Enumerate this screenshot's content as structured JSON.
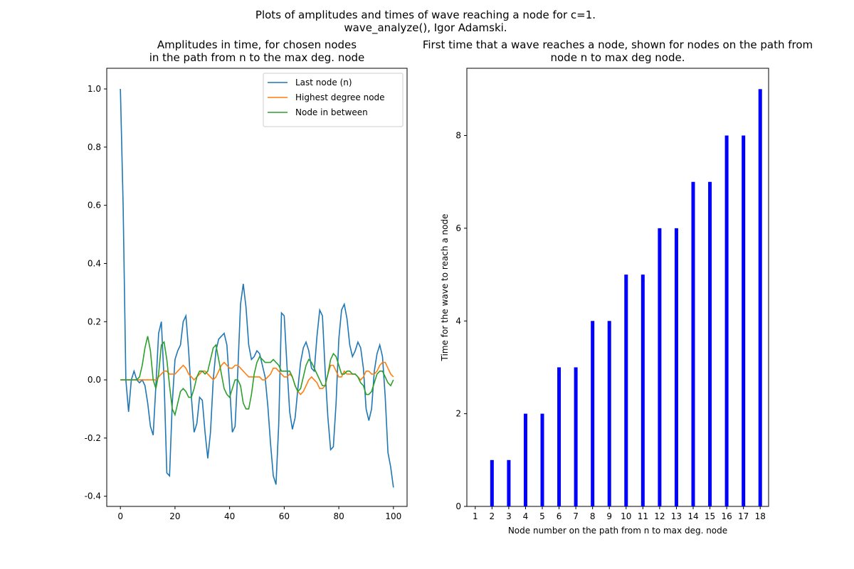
{
  "figure": {
    "title": [
      "Plots of amplitudes and times of wave reaching a node for c=1.",
      "wave_analyze(), Igor Adamski."
    ]
  },
  "chart_data": [
    {
      "type": "line",
      "title": [
        "Amplitudes in time, for chosen nodes",
        "in the path from n to the max deg. node"
      ],
      "x": [
        0,
        1,
        2,
        3,
        4,
        5,
        6,
        7,
        8,
        9,
        10,
        11,
        12,
        13,
        14,
        15,
        16,
        17,
        18,
        19,
        20,
        21,
        22,
        23,
        24,
        25,
        26,
        27,
        28,
        29,
        30,
        31,
        32,
        33,
        34,
        35,
        36,
        37,
        38,
        39,
        40,
        41,
        42,
        43,
        44,
        45,
        46,
        47,
        48,
        49,
        50,
        51,
        52,
        53,
        54,
        55,
        56,
        57,
        58,
        59,
        60,
        61,
        62,
        63,
        64,
        65,
        66,
        67,
        68,
        69,
        70,
        71,
        72,
        73,
        74,
        75,
        76,
        77,
        78,
        79,
        80,
        81,
        82,
        83,
        84,
        85,
        86,
        87,
        88,
        89,
        90,
        91,
        92,
        93,
        94,
        95,
        96,
        97,
        98,
        99,
        100
      ],
      "series": [
        {
          "name": "Last node (n)",
          "color": "#1f77b4",
          "values": [
            1.0,
            0.6,
            0.0,
            -0.11,
            0.0,
            0.03,
            0.0,
            -0.01,
            0.0,
            -0.02,
            -0.08,
            -0.16,
            -0.19,
            -0.02,
            0.16,
            0.2,
            0.0,
            -0.32,
            -0.33,
            -0.08,
            0.07,
            0.1,
            0.12,
            0.2,
            0.22,
            0.1,
            -0.06,
            -0.18,
            -0.15,
            -0.06,
            -0.07,
            -0.18,
            -0.27,
            -0.18,
            0.0,
            0.1,
            0.14,
            0.15,
            0.16,
            0.12,
            -0.02,
            -0.18,
            -0.16,
            0.03,
            0.26,
            0.33,
            0.25,
            0.12,
            0.07,
            0.08,
            0.1,
            0.09,
            0.05,
            0.01,
            -0.09,
            -0.22,
            -0.33,
            -0.36,
            -0.15,
            0.23,
            0.22,
            0.05,
            -0.11,
            -0.17,
            -0.13,
            -0.03,
            0.06,
            0.11,
            0.13,
            0.1,
            0.04,
            0.03,
            0.15,
            0.24,
            0.22,
            0.03,
            -0.13,
            -0.24,
            -0.23,
            -0.08,
            0.14,
            0.24,
            0.26,
            0.21,
            0.12,
            0.08,
            0.1,
            0.13,
            0.11,
            0.04,
            -0.1,
            -0.14,
            -0.1,
            0.03,
            0.09,
            0.12,
            0.08,
            -0.06,
            -0.25,
            -0.3,
            -0.37
          ]
        },
        {
          "name": "Highest degree node",
          "color": "#ff7f0e",
          "values": [
            0,
            0,
            0,
            0,
            0,
            0,
            0,
            0,
            0,
            0,
            0,
            0,
            0,
            0,
            0.01,
            0.02,
            0.03,
            0.03,
            0.02,
            0.02,
            0.02,
            0.03,
            0.04,
            0.05,
            0.04,
            0.02,
            0.01,
            0,
            0.01,
            0.02,
            0.03,
            0.03,
            0.02,
            0.01,
            0,
            0.01,
            0.03,
            0.05,
            0.06,
            0.05,
            0.04,
            0.04,
            0.05,
            0.05,
            0.04,
            0.03,
            0.02,
            0.01,
            0.01,
            0.01,
            0.01,
            0.01,
            0,
            0,
            0.01,
            0.02,
            0.04,
            0.04,
            0.03,
            0.02,
            0.01,
            0.01,
            0.02,
            0.01,
            -0.02,
            -0.04,
            -0.05,
            -0.04,
            -0.02,
            0,
            0.01,
            0,
            -0.01,
            -0.03,
            -0.03,
            -0.02,
            0.02,
            0.05,
            0.05,
            0.03,
            0.01,
            0.01,
            0.03,
            0.02,
            0.02,
            0.02,
            0.02,
            0.01,
            0,
            0.01,
            0.03,
            0.03,
            0.02,
            0.02,
            0.03,
            0.05,
            0.06,
            0.06,
            0.04,
            0.02,
            0.01
          ]
        },
        {
          "name": "Node in between",
          "color": "#2ca02c",
          "values": [
            0,
            0,
            0,
            0,
            0,
            0,
            0,
            0.01,
            0.05,
            0.11,
            0.15,
            0.1,
            0,
            -0.03,
            0.02,
            0.12,
            0.13,
            0.07,
            -0.02,
            -0.1,
            -0.12,
            -0.08,
            -0.04,
            -0.03,
            -0.04,
            -0.06,
            -0.06,
            -0.03,
            0.01,
            0.03,
            0.03,
            0.02,
            0.03,
            0.07,
            0.11,
            0.12,
            0.07,
            0.02,
            -0.03,
            -0.05,
            -0.06,
            -0.03,
            0,
            0,
            -0.02,
            -0.08,
            -0.1,
            -0.1,
            -0.05,
            0.02,
            0.06,
            0.08,
            0.07,
            0.06,
            0.06,
            0.06,
            0.07,
            0.06,
            0.05,
            0.03,
            0.03,
            0.03,
            0.03,
            0.01,
            -0.02,
            -0.04,
            -0.03,
            0.01,
            0.05,
            0.07,
            0.06,
            0.04,
            0.02,
            0,
            -0.02,
            -0.02,
            0.02,
            0.07,
            0.09,
            0.08,
            0.05,
            0.02,
            0.02,
            0.03,
            0.03,
            0.02,
            0.02,
            0.01,
            -0.01,
            -0.02,
            -0.05,
            -0.05,
            -0.04,
            -0.01,
            0.02,
            0.03,
            0.03,
            0.01,
            -0.01,
            -0.02,
            0
          ]
        }
      ],
      "xlim": [
        -5,
        105
      ],
      "xticks": [
        0,
        20,
        40,
        60,
        80,
        100
      ],
      "ylim": [
        -0.435,
        1.071
      ],
      "yticks": [
        -0.4,
        -0.2,
        {
          "value": 0,
          "label": "0.0"
        },
        0.2,
        0.4,
        0.6,
        0.8,
        {
          "value": 1,
          "label": "1.0"
        }
      ],
      "legend": "upper right"
    },
    {
      "type": "bar",
      "title": [
        "First time that a wave reaches a node, shown for nodes on the path from",
        "node n to max deg node."
      ],
      "x_label": "Node number on the path from n to max deg. node",
      "y_label": "Time for the wave to reach a node",
      "categories": [
        "1",
        "2",
        "3",
        "4",
        "5",
        "6",
        "7",
        "8",
        "9",
        "10",
        "11",
        "12",
        "13",
        "14",
        "15",
        "16",
        "17",
        "18"
      ],
      "values": [
        0,
        1,
        1,
        2,
        2,
        3,
        3,
        4,
        4,
        5,
        5,
        6,
        6,
        7,
        7,
        8,
        8,
        9
      ],
      "color": "#0000ff",
      "ylim": [
        0,
        9.45
      ],
      "yticks": [
        0,
        2,
        4,
        6,
        8
      ]
    }
  ]
}
